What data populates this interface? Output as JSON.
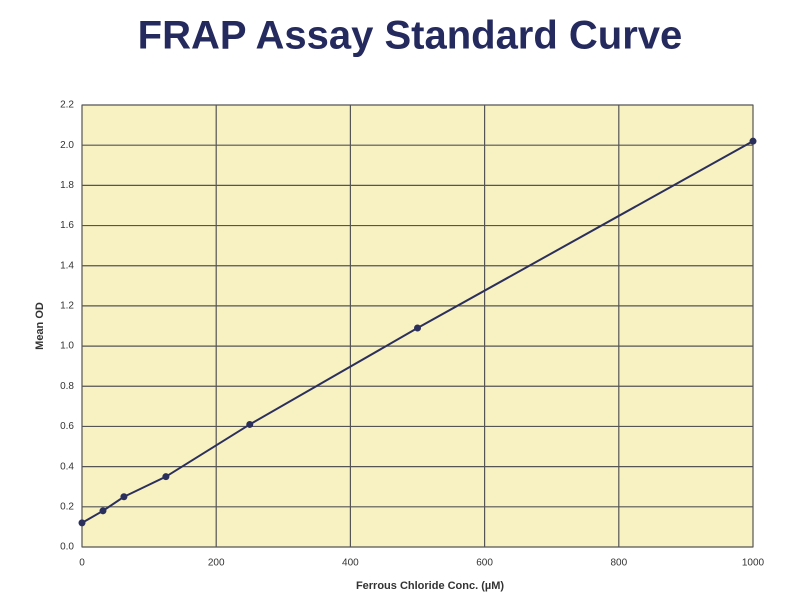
{
  "chart_data": {
    "type": "line",
    "title": "FRAP Assay Standard Curve",
    "x_label": "Ferrous Chloride Conc. (µM)",
    "y_label": "Mean OD",
    "x": [
      0,
      31.25,
      62.5,
      125,
      250,
      500,
      1000
    ],
    "series": [
      {
        "color": "#2b2f5c",
        "values": [
          0.12,
          0.18,
          0.25,
          0.35,
          0.61,
          1.09,
          2.02
        ]
      }
    ],
    "xlim": [
      0,
      1000
    ],
    "xticks": [
      0,
      200,
      400,
      600,
      800,
      1000
    ],
    "ylim": [
      0,
      2.2
    ],
    "yticks": [
      {
        "value": 0,
        "label": "0.0"
      },
      0.2,
      0.4,
      0.6,
      0.8,
      {
        "value": 1,
        "label": "1.0"
      },
      1.2,
      1.4,
      1.6,
      1.8,
      {
        "value": 2,
        "label": "2.0"
      },
      2.2
    ],
    "grid": true,
    "plot_background": "#f8f1c2"
  }
}
